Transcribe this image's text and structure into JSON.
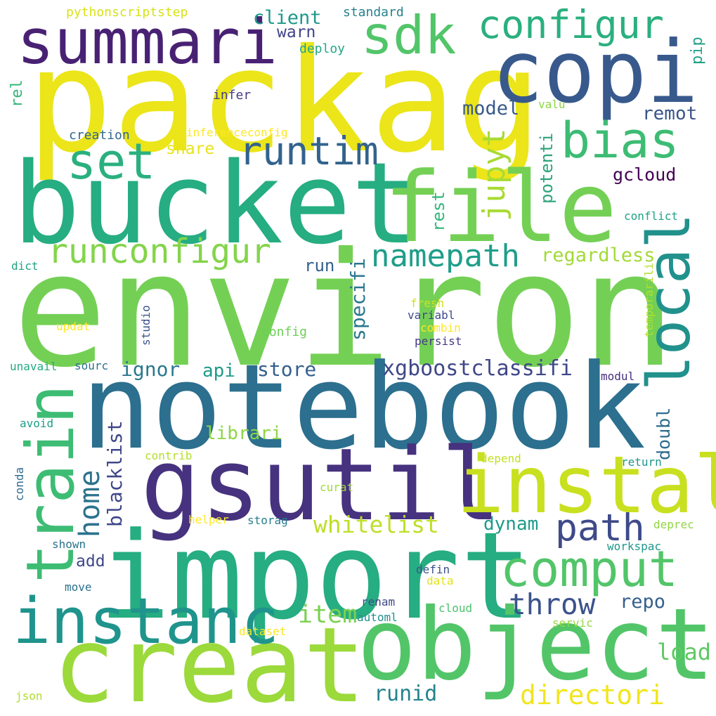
{
  "words": [
    {
      "text": "packag",
      "color": "#ebe51a"
    },
    {
      "text": "environ",
      "color": "#74d055"
    },
    {
      "text": "notebook",
      "color": "#2c6f8e"
    },
    {
      "text": "import",
      "color": "#26ad81"
    },
    {
      "text": "bucket",
      "color": "#26ad81"
    },
    {
      "text": "file",
      "color": "#74d055"
    },
    {
      "text": "creat",
      "color": "#9cd93b"
    },
    {
      "text": "object",
      "color": "#52c569"
    },
    {
      "text": "gsutil",
      "color": "#46327e"
    },
    {
      "text": "copi",
      "color": "#38598c"
    },
    {
      "text": "instal",
      "color": "#c8e020"
    },
    {
      "text": "instanc",
      "color": "#1f948c"
    },
    {
      "text": "summari",
      "color": "#482173"
    },
    {
      "text": "train",
      "color": "#3dbc74"
    },
    {
      "text": "local",
      "color": "#21918c"
    },
    {
      "text": "sdk",
      "color": "#52c569"
    },
    {
      "text": "comput",
      "color": "#52c569"
    },
    {
      "text": "bias",
      "color": "#3dbc74"
    },
    {
      "text": "configur",
      "color": "#2ab07f"
    },
    {
      "text": "set",
      "color": "#2ab07f"
    },
    {
      "text": "runtim",
      "color": "#33638d"
    },
    {
      "text": "runconfigur",
      "color": "#84d44b"
    },
    {
      "text": "path",
      "color": "#3e4a89"
    },
    {
      "text": "namepath",
      "color": "#1f9e89"
    },
    {
      "text": "throw",
      "color": "#3b528b"
    },
    {
      "text": "directori",
      "color": "#f1e51d"
    },
    {
      "text": "home",
      "color": "#2c728e"
    },
    {
      "text": "jupyt",
      "color": "#a8db34"
    },
    {
      "text": "whitelist",
      "color": "#bddf26"
    },
    {
      "text": "xgboostclassifi",
      "color": "#3f4788"
    },
    {
      "text": "item",
      "color": "#7ad151"
    },
    {
      "text": "specifi",
      "color": "#2a788e"
    },
    {
      "text": "load",
      "color": "#5ec962"
    },
    {
      "text": "repo",
      "color": "#355f8d"
    },
    {
      "text": "runid",
      "color": "#25838e"
    },
    {
      "text": "regardless",
      "color": "#a2da37"
    },
    {
      "text": "blacklist",
      "color": "#3f4788"
    },
    {
      "text": "dynam",
      "color": "#1e9b8a"
    },
    {
      "text": "store",
      "color": "#355f8d"
    },
    {
      "text": "ignor",
      "color": "#2a788e"
    },
    {
      "text": "librari",
      "color": "#8ed645"
    },
    {
      "text": "api",
      "color": "#1f9a8a"
    },
    {
      "text": "doubl",
      "color": "#2f6b8e"
    },
    {
      "text": "client",
      "color": "#1f988b"
    },
    {
      "text": "model",
      "color": "#38598c"
    },
    {
      "text": "remot",
      "color": "#3a548c"
    },
    {
      "text": "share",
      "color": "#e7e419"
    },
    {
      "text": "gcloud",
      "color": "#440154"
    },
    {
      "text": "potenti",
      "color": "#2ea37d"
    },
    {
      "text": "rest",
      "color": "#32b67a"
    },
    {
      "text": "run",
      "color": "#34608d"
    },
    {
      "text": "add",
      "color": "#3f4788"
    },
    {
      "text": "warn",
      "color": "#414487"
    },
    {
      "text": "pip",
      "color": "#1fa188"
    },
    {
      "text": "pythonscriptstep",
      "color": "#d8e219"
    },
    {
      "text": "standard",
      "color": "#26828e"
    },
    {
      "text": "deploy",
      "color": "#22a785"
    },
    {
      "text": "infer",
      "color": "#433e85"
    },
    {
      "text": "valu",
      "color": "#8bd646"
    },
    {
      "text": "rel",
      "color": "#35b779"
    },
    {
      "text": "creation",
      "color": "#31688e"
    },
    {
      "text": "inferenceconfig",
      "color": "#fde725"
    },
    {
      "text": "conflict",
      "color": "#20a486"
    },
    {
      "text": "dict",
      "color": "#20a386"
    },
    {
      "text": "fresh",
      "color": "#d0e11c"
    },
    {
      "text": "variabl",
      "color": "#3e4989"
    },
    {
      "text": "combin",
      "color": "#fde725"
    },
    {
      "text": "persist",
      "color": "#443983"
    },
    {
      "text": "updat",
      "color": "#fde725"
    },
    {
      "text": "config",
      "color": "#6ece58"
    },
    {
      "text": "studio",
      "color": "#3b528b"
    },
    {
      "text": "temporarili",
      "color": "#b5de2b"
    },
    {
      "text": "unavail",
      "color": "#25ab82"
    },
    {
      "text": "sourc",
      "color": "#2c728e"
    },
    {
      "text": "modul",
      "color": "#472f7d"
    },
    {
      "text": "avoid",
      "color": "#1f9e89"
    },
    {
      "text": "contrib",
      "color": "#b5de2b"
    },
    {
      "text": "depend",
      "color": "#c2df23"
    },
    {
      "text": "conda",
      "color": "#2f6c8e"
    },
    {
      "text": "return",
      "color": "#1f958b"
    },
    {
      "text": "curat",
      "color": "#a0da39"
    },
    {
      "text": "helper",
      "color": "#fde725"
    },
    {
      "text": "storag",
      "color": "#287d8e"
    },
    {
      "text": "deprec",
      "color": "#90d743"
    },
    {
      "text": "shown",
      "color": "#2b748e"
    },
    {
      "text": "workspac",
      "color": "#1f988b"
    },
    {
      "text": "defin",
      "color": "#3b528b"
    },
    {
      "text": "data",
      "color": "#e2e418"
    },
    {
      "text": "move",
      "color": "#2c718e"
    },
    {
      "text": "renam",
      "color": "#3f4889"
    },
    {
      "text": "cloud",
      "color": "#4cc26c"
    },
    {
      "text": "automl",
      "color": "#21908d"
    },
    {
      "text": "servic",
      "color": "#95d840"
    },
    {
      "text": "dataset",
      "color": "#f8e621"
    },
    {
      "text": "json",
      "color": "#b0dd2f"
    }
  ]
}
